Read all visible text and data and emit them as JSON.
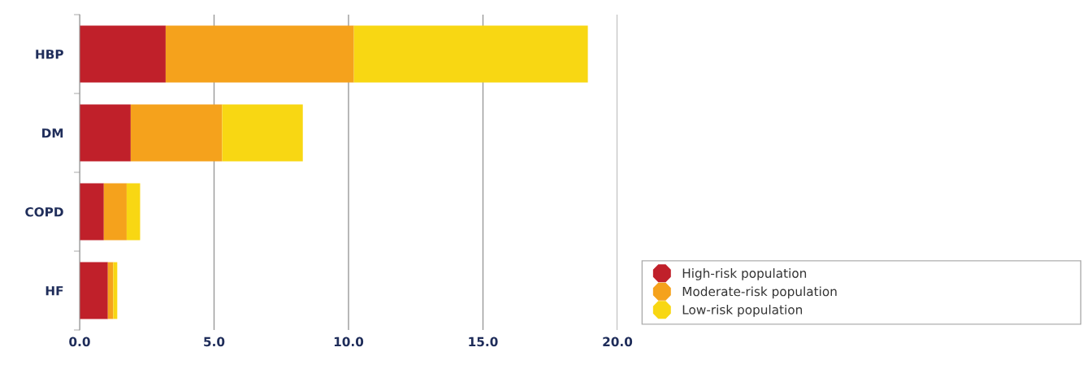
{
  "chart_data": {
    "type": "bar",
    "orientation": "horizontal",
    "stacked": true,
    "categories": [
      "HBP",
      "DM",
      "COPD",
      "HF"
    ],
    "series": [
      {
        "name": "High-risk population",
        "color": "#c0202a",
        "values": [
          3.2,
          1.9,
          0.9,
          1.05
        ]
      },
      {
        "name": "Moderate-risk population",
        "color": "#f5a21c",
        "values": [
          7.0,
          3.4,
          0.85,
          0.2
        ]
      },
      {
        "name": "Low-risk population",
        "color": "#f8d713",
        "values": [
          8.7,
          3.0,
          0.5,
          0.15
        ]
      }
    ],
    "xlim": [
      0,
      20
    ],
    "xticks": [
      {
        "value": 0,
        "label": "0.0"
      },
      {
        "value": 5,
        "label": "5.0"
      },
      {
        "value": 10,
        "label": "10.0"
      },
      {
        "value": 15,
        "label": "15.0"
      },
      {
        "value": 20,
        "label": "20.0"
      }
    ],
    "grid": "x",
    "legend": "bottom right",
    "marker": "octagon"
  }
}
